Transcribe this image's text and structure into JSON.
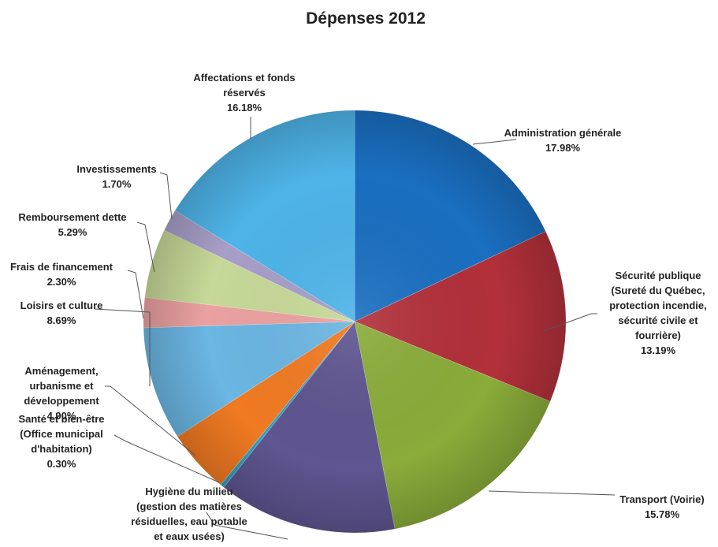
{
  "chart_data": {
    "type": "pie",
    "title": "Dépenses 2012",
    "slices": [
      {
        "label_lines": [
          "Administration générale"
        ],
        "value": 17.98,
        "value_label": "17.98%",
        "color": "#1a6fc1"
      },
      {
        "label_lines": [
          "Sécurité publique",
          "(Sureté du Québec,",
          "protection incendie,",
          "sécurité civile et",
          "fourrière)"
        ],
        "value": 13.19,
        "value_label": "13.19%",
        "color": "#b2303a"
      },
      {
        "label_lines": [
          "Transport (Voirie)"
        ],
        "value": 15.78,
        "value_label": "15.78%",
        "color": "#8aac3a"
      },
      {
        "label_lines": [
          "Hygiène du milieu",
          "(gestion des matières",
          "résiduelles, eau potable",
          "et eaux usées)"
        ],
        "value": 13.69,
        "value_label": "13.69%",
        "color": "#5f5590"
      },
      {
        "label_lines": [
          "Santé et bien-être",
          "(Office municipal",
          "d'habitation)"
        ],
        "value": 0.3,
        "value_label": "0.30%",
        "color": "#2a9fc4"
      },
      {
        "label_lines": [
          "Aménagement,",
          "urbanisme et",
          "développement"
        ],
        "value": 4.9,
        "value_label": "4.90%",
        "color": "#f07a22"
      },
      {
        "label_lines": [
          "Loisirs et culture"
        ],
        "value": 8.69,
        "value_label": "8.69%",
        "color": "#6bb6e3"
      },
      {
        "label_lines": [
          "Frais de financement"
        ],
        "value": 2.3,
        "value_label": "2.30%",
        "color": "#eba1a1"
      },
      {
        "label_lines": [
          "Remboursement dette"
        ],
        "value": 5.29,
        "value_label": "5.29%",
        "color": "#c7d998"
      },
      {
        "label_lines": [
          "Investissements"
        ],
        "value": 1.7,
        "value_label": "1.70%",
        "color": "#a79fc8"
      },
      {
        "label_lines": [
          "Affectations et fonds",
          "réservés"
        ],
        "value": 16.18,
        "value_label": "16.18%",
        "color": "#4eb4e8"
      }
    ]
  }
}
